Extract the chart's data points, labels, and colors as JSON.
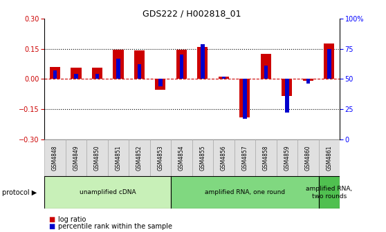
{
  "title": "GDS222 / H002818_01",
  "samples": [
    "GSM4848",
    "GSM4849",
    "GSM4850",
    "GSM4851",
    "GSM4852",
    "GSM4853",
    "GSM4854",
    "GSM4855",
    "GSM4856",
    "GSM4857",
    "GSM4858",
    "GSM4859",
    "GSM4860",
    "GSM4861"
  ],
  "log_ratio": [
    0.06,
    0.055,
    0.055,
    0.145,
    0.14,
    -0.055,
    0.145,
    0.16,
    0.01,
    -0.19,
    0.125,
    -0.085,
    -0.01,
    0.175
  ],
  "percentile_rank": [
    57,
    54,
    54,
    67,
    62,
    44,
    70,
    79,
    52,
    17,
    61,
    22,
    46,
    75
  ],
  "protocols": [
    {
      "label": "unamplified cDNA",
      "start": 0,
      "end": 5,
      "color": "#c8f0b8"
    },
    {
      "label": "amplified RNA, one round",
      "start": 6,
      "end": 12,
      "color": "#80d880"
    },
    {
      "label": "amplified RNA,\ntwo rounds",
      "start": 13,
      "end": 13,
      "color": "#50c050"
    }
  ],
  "ylim_left": [
    -0.3,
    0.3
  ],
  "ylim_right": [
    0,
    100
  ],
  "yticks_left": [
    -0.3,
    -0.15,
    0,
    0.15,
    0.3
  ],
  "yticks_right": [
    0,
    25,
    50,
    75,
    100
  ],
  "red_color": "#cc0000",
  "blue_color": "#0000cc",
  "zero_line_color": "#cc0000",
  "red_bar_width": 0.5,
  "blue_bar_width": 0.18
}
